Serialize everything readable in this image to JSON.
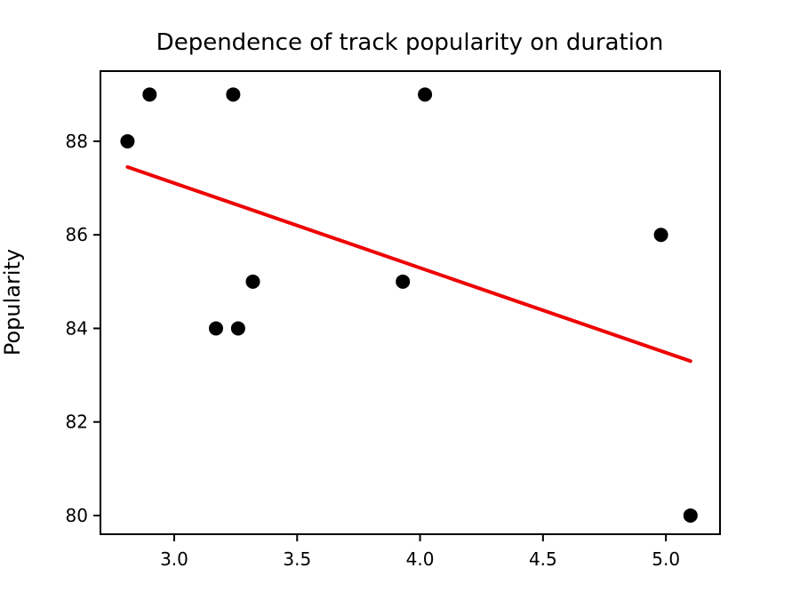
{
  "chart_data": {
    "type": "scatter",
    "title": "Dependence of track popularity on duration",
    "xlabel": "",
    "ylabel": "Popularity",
    "xlim": [
      2.7,
      5.22
    ],
    "ylim": [
      79.6,
      89.5
    ],
    "xticks": [
      "3.0",
      "3.5",
      "4.0",
      "4.5",
      "5.0"
    ],
    "yticks": [
      "80",
      "82",
      "84",
      "86",
      "88"
    ],
    "grid": false,
    "points": [
      {
        "x": 2.81,
        "y": 88
      },
      {
        "x": 2.9,
        "y": 89
      },
      {
        "x": 3.17,
        "y": 84
      },
      {
        "x": 3.24,
        "y": 89
      },
      {
        "x": 3.26,
        "y": 84
      },
      {
        "x": 3.32,
        "y": 85
      },
      {
        "x": 3.93,
        "y": 85
      },
      {
        "x": 4.02,
        "y": 89
      },
      {
        "x": 4.98,
        "y": 86
      },
      {
        "x": 5.1,
        "y": 80
      }
    ],
    "trendline": {
      "x": [
        2.81,
        5.1
      ],
      "y": [
        87.45,
        83.3
      ]
    },
    "colors": {
      "points": "#000000",
      "trendline": "#ee0000",
      "axes": "#000000"
    }
  }
}
